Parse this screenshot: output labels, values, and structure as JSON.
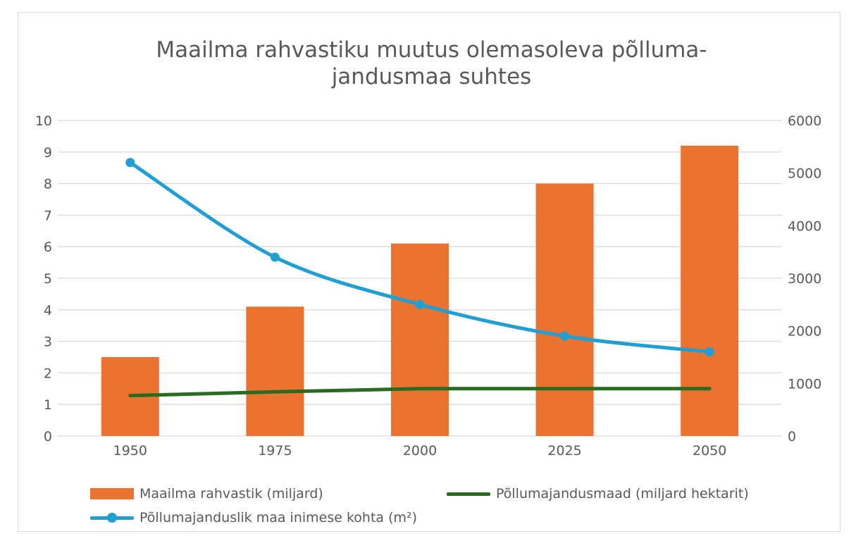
{
  "chart_data": {
    "type": "bar",
    "title_lines": [
      "Maailma rahvastiku muutus olemasoleva põlluma-",
      "jandusmaa suhtes"
    ],
    "categories": [
      "1950",
      "1975",
      "2000",
      "2025",
      "2050"
    ],
    "y_left": {
      "ylim": [
        0,
        10
      ],
      "ticks": [
        "0",
        "1",
        "2",
        "3",
        "4",
        "5",
        "6",
        "7",
        "8",
        "9",
        "10"
      ]
    },
    "y_right": {
      "ylim": [
        0,
        6000
      ],
      "ticks": [
        "0",
        "1000",
        "2000",
        "3000",
        "4000",
        "5000",
        "6000"
      ]
    },
    "grid": true,
    "legend_position": "bottom",
    "series": [
      {
        "name": "Maailma rahvastik (miljard)",
        "kind": "bar",
        "axis": "left",
        "color": "#ea7331",
        "values": [
          2.5,
          4.1,
          6.1,
          8.0,
          9.2
        ]
      },
      {
        "name": "Põllumajandusmaad (miljard hektarit)",
        "kind": "line",
        "axis": "left",
        "color": "#2a6b22",
        "values": [
          1.28,
          1.4,
          1.5,
          1.5,
          1.5
        ]
      },
      {
        "name": "Põllumajanduslik maa inimese kohta (m²)",
        "kind": "line-marker",
        "axis": "right",
        "color": "#1f9fd4",
        "values": [
          5200,
          3400,
          2500,
          1900,
          1600
        ]
      }
    ]
  }
}
